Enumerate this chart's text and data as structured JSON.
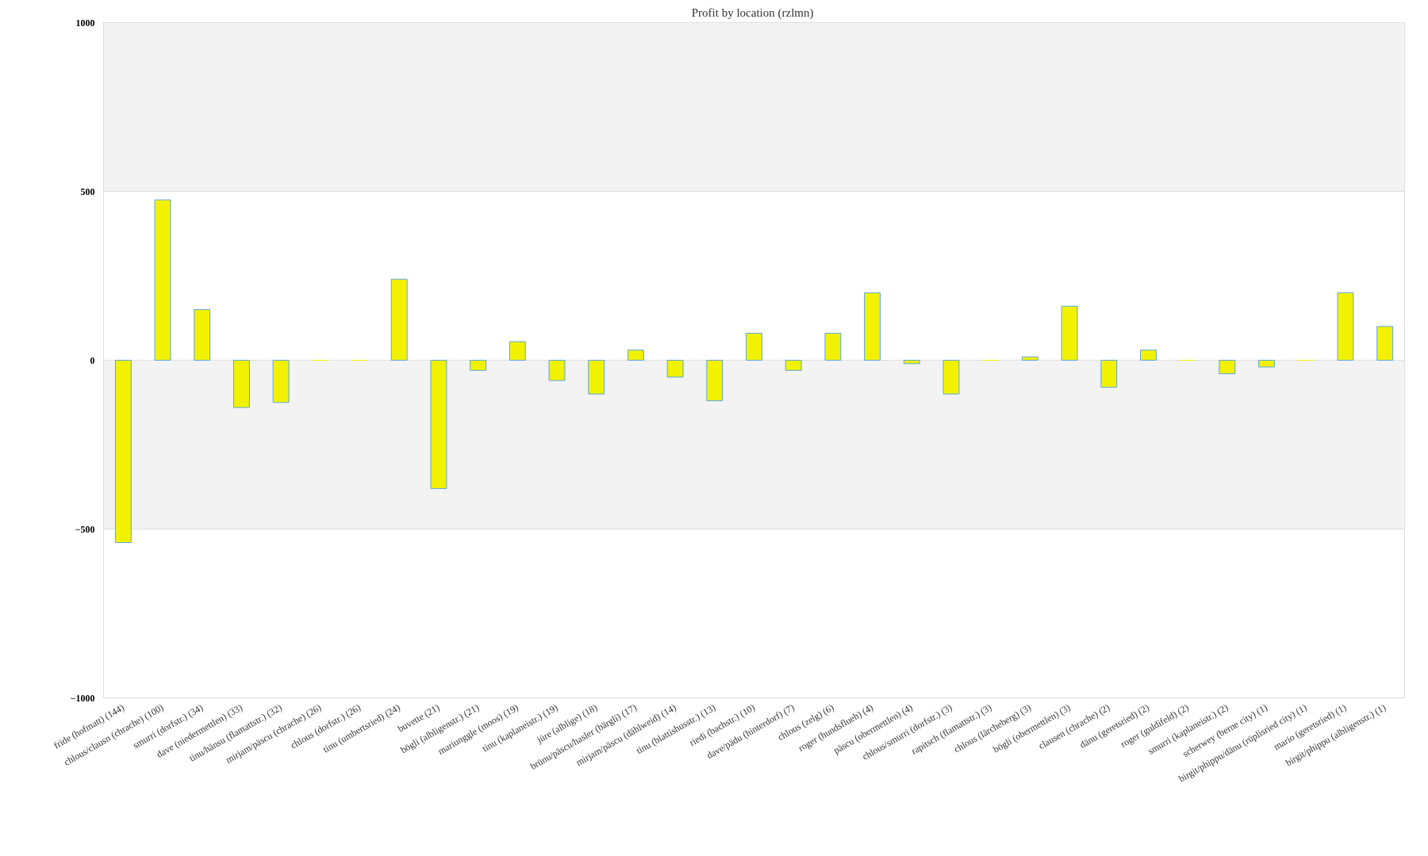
{
  "chart_data": {
    "type": "bar",
    "title": "Profit by location  (rzlmn)",
    "categories": [
      "fride (hofmatt) (144)",
      "chlous/clausn (chrache) (100)",
      "smurri (dorfstr.) (34)",
      "dave (niedermettlen) (33)",
      "tinu/hänsu (flamattstr.) (32)",
      "mirjam/päscu (chrache) (26)",
      "chlous (dorfstr.) (26)",
      "tinu (umbertsried) (24)",
      "buvette (21)",
      "bögli (albligenstr.) (21)",
      "mariunggle (moos) (19)",
      "tinu (kaplaneistr.) (19)",
      "jüre (alblige) (18)",
      "brünu/päscu/hasler (bärgli) (17)",
      "mirjam/päscu (dählweid) (14)",
      "tinu (blattishusstr.) (13)",
      "riedi (bachstr.) (10)",
      "dave/pädu (hinterdorf) (7)",
      "chlous (zelg) (6)",
      "roger (hundsflueh) (4)",
      "päscu (obermettlen) (4)",
      "chlous/smurri (dorfstr.) (3)",
      "rapitsch (flamattstr.) (3)",
      "chlous (lärcheberg) (3)",
      "bögli (obermettlen) (3)",
      "clausen (chrache) (2)",
      "dänu (geretsried) (2)",
      "roger (guldifeld) (2)",
      "smurri (kaplaneistr.) (2)",
      "scherwey (berne city) (1)",
      "birgit/phippu/dänu (rüplisried city) (1)",
      "mario (geretsried) (1)",
      "birgit/phippu (albligenstr.) (1)"
    ],
    "values": [
      -540,
      475,
      150,
      -140,
      -125,
      0,
      0,
      240,
      -380,
      -30,
      55,
      -60,
      -100,
      30,
      -50,
      -120,
      80,
      -30,
      80,
      200,
      -10,
      -100,
      0,
      10,
      160,
      -80,
      30,
      0,
      -40,
      -20,
      0,
      200,
      100
    ],
    "color": "#f2f200",
    "ylim": [
      -1000,
      1000
    ],
    "yticks": [
      -1000,
      -500,
      0,
      500,
      1000
    ],
    "grid": "y",
    "bands": [
      {
        "axis": "y",
        "from": 500,
        "to": 1000,
        "color": "#f3f3f3"
      },
      {
        "axis": "y",
        "from": -500,
        "to": 0,
        "color": "#f3f3f3"
      }
    ]
  }
}
